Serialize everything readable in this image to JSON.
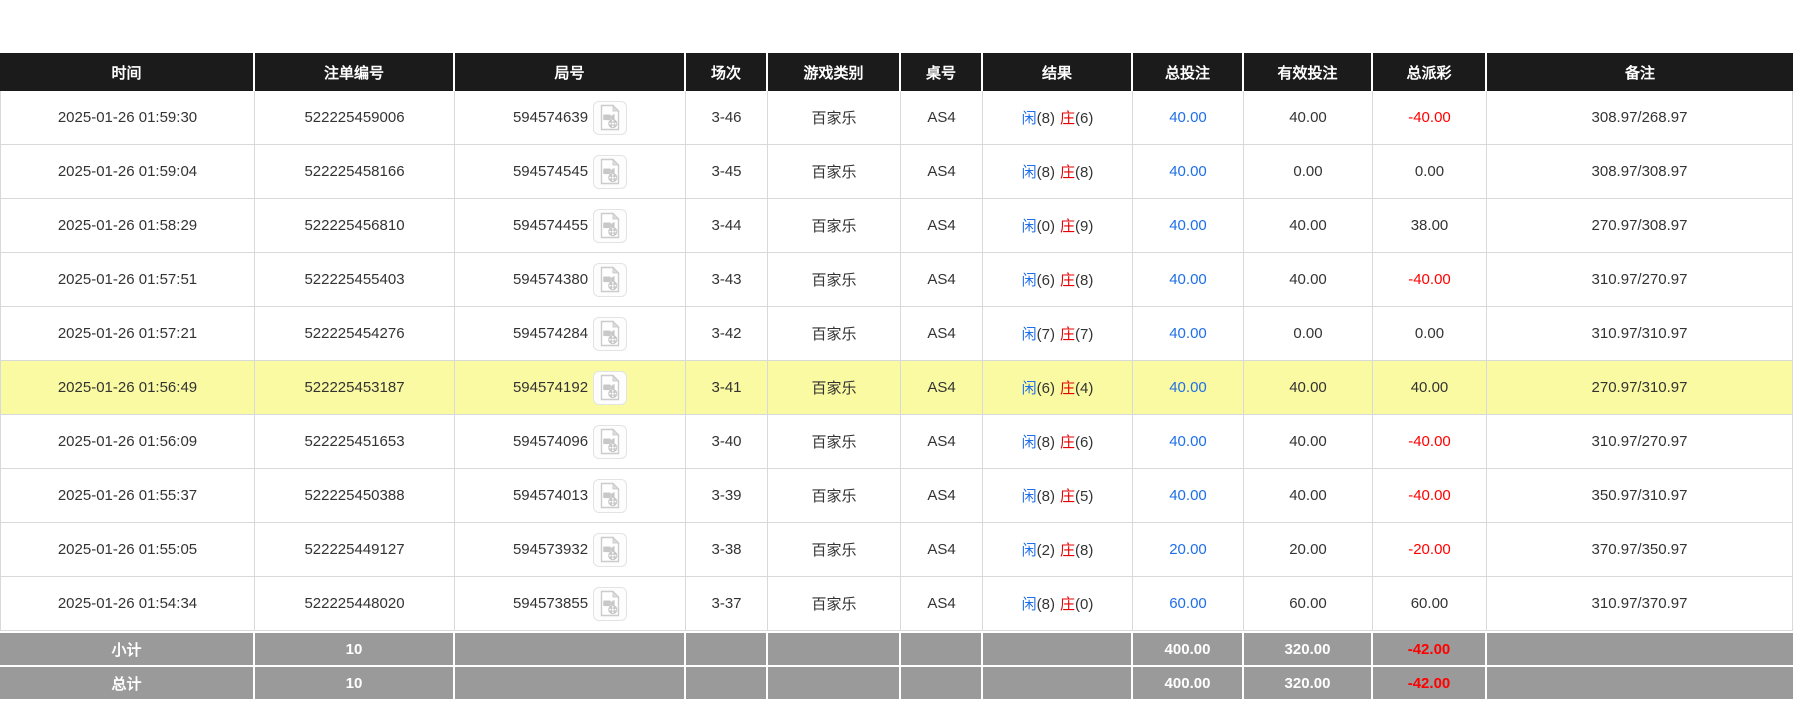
{
  "table": {
    "columns": [
      {
        "key": "time",
        "label": "时间"
      },
      {
        "key": "bet_no",
        "label": "注单编号"
      },
      {
        "key": "round_no",
        "label": "局号"
      },
      {
        "key": "session",
        "label": "场次"
      },
      {
        "key": "game_type",
        "label": "游戏类别"
      },
      {
        "key": "table_no",
        "label": "桌号"
      },
      {
        "key": "result",
        "label": "结果"
      },
      {
        "key": "total_bet",
        "label": "总投注"
      },
      {
        "key": "valid_bet",
        "label": "有效投注"
      },
      {
        "key": "total_payout",
        "label": "总派彩"
      },
      {
        "key": "remark",
        "label": "备注"
      }
    ],
    "rows": [
      {
        "time": "2025-01-26 01:59:30",
        "bet_no": "522225459006",
        "round_no": "594574639",
        "session": "3-46",
        "game_type": "百家乐",
        "table_no": "AS4",
        "result": {
          "player": "闲",
          "player_score": "(8)",
          "banker": "庄",
          "banker_score": "(6)"
        },
        "total_bet": "40.00",
        "valid_bet": "40.00",
        "total_payout": "-40.00",
        "remark": "308.97/268.97",
        "highlighted": false
      },
      {
        "time": "2025-01-26 01:59:04",
        "bet_no": "522225458166",
        "round_no": "594574545",
        "session": "3-45",
        "game_type": "百家乐",
        "table_no": "AS4",
        "result": {
          "player": "闲",
          "player_score": "(8)",
          "banker": "庄",
          "banker_score": "(8)"
        },
        "total_bet": "40.00",
        "valid_bet": "0.00",
        "total_payout": "0.00",
        "remark": "308.97/308.97",
        "highlighted": false
      },
      {
        "time": "2025-01-26 01:58:29",
        "bet_no": "522225456810",
        "round_no": "594574455",
        "session": "3-44",
        "game_type": "百家乐",
        "table_no": "AS4",
        "result": {
          "player": "闲",
          "player_score": "(0)",
          "banker": "庄",
          "banker_score": "(9)"
        },
        "total_bet": "40.00",
        "valid_bet": "40.00",
        "total_payout": "38.00",
        "remark": "270.97/308.97",
        "highlighted": false
      },
      {
        "time": "2025-01-26 01:57:51",
        "bet_no": "522225455403",
        "round_no": "594574380",
        "session": "3-43",
        "game_type": "百家乐",
        "table_no": "AS4",
        "result": {
          "player": "闲",
          "player_score": "(6)",
          "banker": "庄",
          "banker_score": "(8)"
        },
        "total_bet": "40.00",
        "valid_bet": "40.00",
        "total_payout": "-40.00",
        "remark": "310.97/270.97",
        "highlighted": false
      },
      {
        "time": "2025-01-26 01:57:21",
        "bet_no": "522225454276",
        "round_no": "594574284",
        "session": "3-42",
        "game_type": "百家乐",
        "table_no": "AS4",
        "result": {
          "player": "闲",
          "player_score": "(7)",
          "banker": "庄",
          "banker_score": "(7)"
        },
        "total_bet": "40.00",
        "valid_bet": "0.00",
        "total_payout": "0.00",
        "remark": "310.97/310.97",
        "highlighted": false
      },
      {
        "time": "2025-01-26 01:56:49",
        "bet_no": "522225453187",
        "round_no": "594574192",
        "session": "3-41",
        "game_type": "百家乐",
        "table_no": "AS4",
        "result": {
          "player": "闲",
          "player_score": "(6)",
          "banker": "庄",
          "banker_score": "(4)"
        },
        "total_bet": "40.00",
        "valid_bet": "40.00",
        "total_payout": "40.00",
        "remark": "270.97/310.97",
        "highlighted": true
      },
      {
        "time": "2025-01-26 01:56:09",
        "bet_no": "522225451653",
        "round_no": "594574096",
        "session": "3-40",
        "game_type": "百家乐",
        "table_no": "AS4",
        "result": {
          "player": "闲",
          "player_score": "(8)",
          "banker": "庄",
          "banker_score": "(6)"
        },
        "total_bet": "40.00",
        "valid_bet": "40.00",
        "total_payout": "-40.00",
        "remark": "310.97/270.97",
        "highlighted": false
      },
      {
        "time": "2025-01-26 01:55:37",
        "bet_no": "522225450388",
        "round_no": "594574013",
        "session": "3-39",
        "game_type": "百家乐",
        "table_no": "AS4",
        "result": {
          "player": "闲",
          "player_score": "(8)",
          "banker": "庄",
          "banker_score": "(5)"
        },
        "total_bet": "40.00",
        "valid_bet": "40.00",
        "total_payout": "-40.00",
        "remark": "350.97/310.97",
        "highlighted": false
      },
      {
        "time": "2025-01-26 01:55:05",
        "bet_no": "522225449127",
        "round_no": "594573932",
        "session": "3-38",
        "game_type": "百家乐",
        "table_no": "AS4",
        "result": {
          "player": "闲",
          "player_score": "(2)",
          "banker": "庄",
          "banker_score": "(8)"
        },
        "total_bet": "20.00",
        "valid_bet": "20.00",
        "total_payout": "-20.00",
        "remark": "370.97/350.97",
        "highlighted": false
      },
      {
        "time": "2025-01-26 01:54:34",
        "bet_no": "522225448020",
        "round_no": "594573855",
        "session": "3-37",
        "game_type": "百家乐",
        "table_no": "AS4",
        "result": {
          "player": "闲",
          "player_score": "(8)",
          "banker": "庄",
          "banker_score": "(0)"
        },
        "total_bet": "60.00",
        "valid_bet": "60.00",
        "total_payout": "60.00",
        "remark": "310.97/370.97",
        "highlighted": false
      }
    ],
    "summary_rows": [
      {
        "label": "小计",
        "count": "10",
        "total_bet": "400.00",
        "valid_bet": "320.00",
        "total_payout": "-42.00"
      },
      {
        "label": "总计",
        "count": "10",
        "total_bet": "400.00",
        "valid_bet": "320.00",
        "total_payout": "-42.00"
      }
    ]
  },
  "icons": {
    "round_replay": "video-file-icon"
  },
  "colors": {
    "header_bg": "#1b1b1b",
    "header_text": "#ffffff",
    "link_blue": "#1e6fe8",
    "player_blue": "#1e6fe8",
    "banker_red": "#e60000",
    "negative_red": "#ff0000",
    "highlight_yellow": "#fafaa2",
    "summary_bg": "#9a9a9a",
    "row_border": "#d9d9d9",
    "text": "#333333"
  }
}
